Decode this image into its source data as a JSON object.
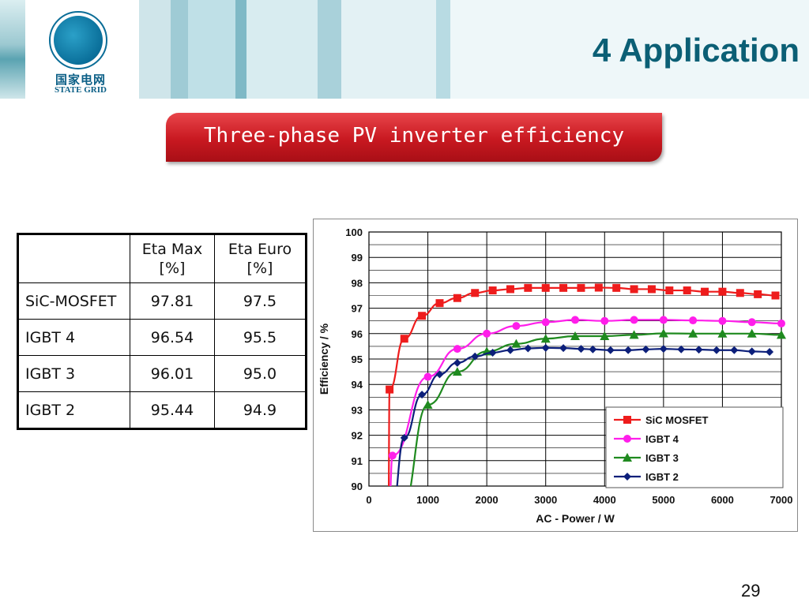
{
  "header": {
    "logo_text_cn": "国家电网",
    "logo_text_en": "STATE GRID",
    "title": "4  Application"
  },
  "banner": {
    "text": "Three-phase PV inverter efficiency"
  },
  "table": {
    "headers": [
      "",
      "Eta Max [%]",
      "Eta Euro [%]"
    ],
    "rows": [
      [
        "SiC-MOSFET",
        "97.81",
        "97.5"
      ],
      [
        "IGBT 4",
        "96.54",
        "95.5"
      ],
      [
        "IGBT 3",
        "96.01",
        "95.0"
      ],
      [
        "IGBT 2",
        "95.44",
        "94.9"
      ]
    ]
  },
  "chart_data": {
    "type": "line",
    "xlabel": "AC - Power / W",
    "ylabel": "Efficiency / %",
    "xlim": [
      0,
      7000
    ],
    "ylim": [
      90,
      100
    ],
    "xticks": [
      0,
      1000,
      2000,
      3000,
      4000,
      5000,
      6000,
      7000
    ],
    "yticks": [
      90,
      91,
      92,
      93,
      94,
      95,
      96,
      97,
      98,
      99,
      100
    ],
    "grid": true,
    "legend_position": "bottom-right",
    "series": [
      {
        "name": "SiC MOSFET",
        "color": "#ee1c1c",
        "marker": "square",
        "x": [
          350,
          600,
          900,
          1200,
          1500,
          1800,
          2100,
          2400,
          2700,
          3000,
          3300,
          3600,
          3900,
          4200,
          4500,
          4800,
          5100,
          5400,
          5700,
          6000,
          6300,
          6600,
          6900
        ],
        "y": [
          93.8,
          95.8,
          96.7,
          97.2,
          97.4,
          97.6,
          97.7,
          97.75,
          97.8,
          97.8,
          97.8,
          97.8,
          97.81,
          97.8,
          97.75,
          97.75,
          97.7,
          97.7,
          97.65,
          97.65,
          97.6,
          97.55,
          97.5
        ]
      },
      {
        "name": "IGBT 4",
        "color": "#ff1eea",
        "marker": "circle",
        "x": [
          400,
          1000,
          1500,
          2000,
          2500,
          3000,
          3500,
          4000,
          4500,
          5000,
          5500,
          6000,
          6500,
          7000
        ],
        "y": [
          91.2,
          94.3,
          95.4,
          96.0,
          96.3,
          96.45,
          96.54,
          96.5,
          96.54,
          96.54,
          96.52,
          96.5,
          96.45,
          96.4
        ]
      },
      {
        "name": "IGBT 3",
        "color": "#1f8a1f",
        "marker": "triangle",
        "x": [
          1000,
          1500,
          2000,
          2500,
          3000,
          3500,
          4000,
          4500,
          5000,
          5500,
          6000,
          6500,
          7000
        ],
        "y": [
          93.2,
          94.5,
          95.3,
          95.6,
          95.8,
          95.9,
          95.9,
          95.95,
          96.01,
          96.0,
          96.0,
          96.0,
          95.95
        ]
      },
      {
        "name": "IGBT 2",
        "color": "#0c1f7a",
        "marker": "diamond",
        "x": [
          600,
          900,
          1200,
          1500,
          1800,
          2100,
          2400,
          2700,
          3000,
          3300,
          3600,
          3800,
          4100,
          4400,
          4700,
          5000,
          5300,
          5600,
          5900,
          6200,
          6500,
          6800
        ],
        "y": [
          91.9,
          93.6,
          94.4,
          94.85,
          95.1,
          95.25,
          95.35,
          95.42,
          95.44,
          95.43,
          95.4,
          95.38,
          95.35,
          95.35,
          95.38,
          95.4,
          95.38,
          95.37,
          95.35,
          95.35,
          95.3,
          95.28
        ]
      }
    ]
  },
  "footer": {
    "slide_number": "29"
  }
}
